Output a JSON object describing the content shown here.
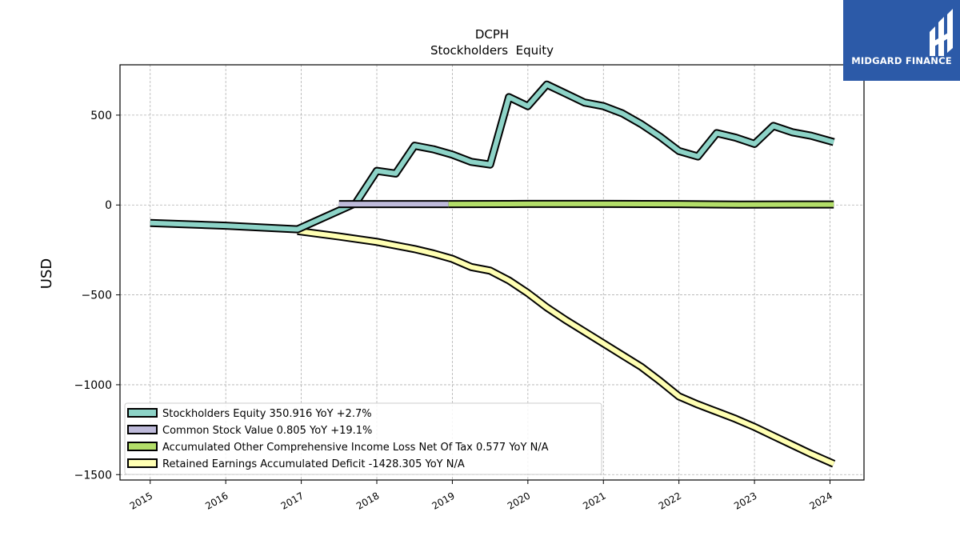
{
  "chart_data": {
    "type": "line",
    "title": "DCPH",
    "subtitle": "Stockholders  Equity",
    "ylabel": "USD",
    "xlabel": "",
    "ylim": [
      -1530,
      780
    ],
    "xlim": [
      2014.6,
      2024.45
    ],
    "yticks": [
      {
        "value": 500,
        "label": "500"
      },
      {
        "value": 0,
        "label": "0"
      },
      {
        "value": -500,
        "label": "−500"
      },
      {
        "value": -1000,
        "label": "−1000"
      },
      {
        "value": -1500,
        "label": "−1500"
      }
    ],
    "xticks": [
      {
        "value": 2015,
        "label": "2015"
      },
      {
        "value": 2016,
        "label": "2016"
      },
      {
        "value": 2017,
        "label": "2017"
      },
      {
        "value": 2018,
        "label": "2018"
      },
      {
        "value": 2019,
        "label": "2019"
      },
      {
        "value": 2020,
        "label": "2020"
      },
      {
        "value": 2021,
        "label": "2021"
      },
      {
        "value": 2022,
        "label": "2022"
      },
      {
        "value": 2023,
        "label": "2023"
      },
      {
        "value": 2024,
        "label": "2024"
      }
    ],
    "grid": true,
    "legend_position": "lower-left",
    "series": [
      {
        "name": "Stockholders Equity",
        "legend_label": "Stockholders Equity  350.916 YoY +2.7%",
        "color": "#8dd3c7",
        "x": [
          2015.0,
          2016.0,
          2016.95,
          2017.72,
          2018.0,
          2018.25,
          2018.5,
          2018.75,
          2019.0,
          2019.25,
          2019.5,
          2019.75,
          2020.0,
          2020.25,
          2020.5,
          2020.75,
          2021.0,
          2021.25,
          2021.5,
          2021.75,
          2022.0,
          2022.25,
          2022.5,
          2022.75,
          2023.0,
          2023.25,
          2023.5,
          2023.75,
          2024.05
        ],
        "y": [
          -100,
          -115,
          -135,
          10,
          190,
          175,
          330,
          310,
          280,
          240,
          225,
          600,
          550,
          670,
          620,
          570,
          550,
          510,
          450,
          380,
          300,
          270,
          400,
          375,
          340,
          440,
          405,
          385,
          350
        ]
      },
      {
        "name": "Common Stock Value",
        "legend_label": "Common Stock Value  0.805 YoY +19.1%",
        "color": "#bebada",
        "x": [
          2017.5,
          2018.95
        ],
        "y": [
          5,
          5
        ]
      },
      {
        "name": "Accumulated Other Comprehensive Income Loss Net Of Tax",
        "legend_label": "Accumulated Other Comprehensive Income Loss Net Of Tax  0.577 YoY N/A",
        "color": "#b3de69",
        "x": [
          2018.95,
          2020.0,
          2021.0,
          2022.0,
          2022.8,
          2023.5,
          2024.05
        ],
        "y": [
          5,
          6,
          6,
          5,
          2,
          3,
          3
        ]
      },
      {
        "name": "Retained Earnings Accumulated Deficit",
        "legend_label": "Retained Earnings Accumulated Deficit  -1428.305 YoY N/A",
        "color": "#ffffb3",
        "x": [
          2016.95,
          2017.5,
          2018.0,
          2018.5,
          2018.75,
          2019.0,
          2019.25,
          2019.5,
          2019.75,
          2020.0,
          2020.25,
          2020.5,
          2020.75,
          2021.0,
          2021.25,
          2021.5,
          2021.75,
          2022.0,
          2022.25,
          2022.5,
          2022.75,
          2023.0,
          2023.25,
          2023.5,
          2023.75,
          2024.05
        ],
        "y": [
          -145,
          -175,
          -205,
          -245,
          -270,
          -300,
          -345,
          -365,
          -420,
          -490,
          -570,
          -640,
          -705,
          -770,
          -835,
          -900,
          -980,
          -1065,
          -1110,
          -1150,
          -1190,
          -1235,
          -1285,
          -1335,
          -1385,
          -1440
        ]
      }
    ]
  },
  "logo": {
    "text": "MIDGARD FINANCE",
    "background": "#2c5aa8"
  }
}
